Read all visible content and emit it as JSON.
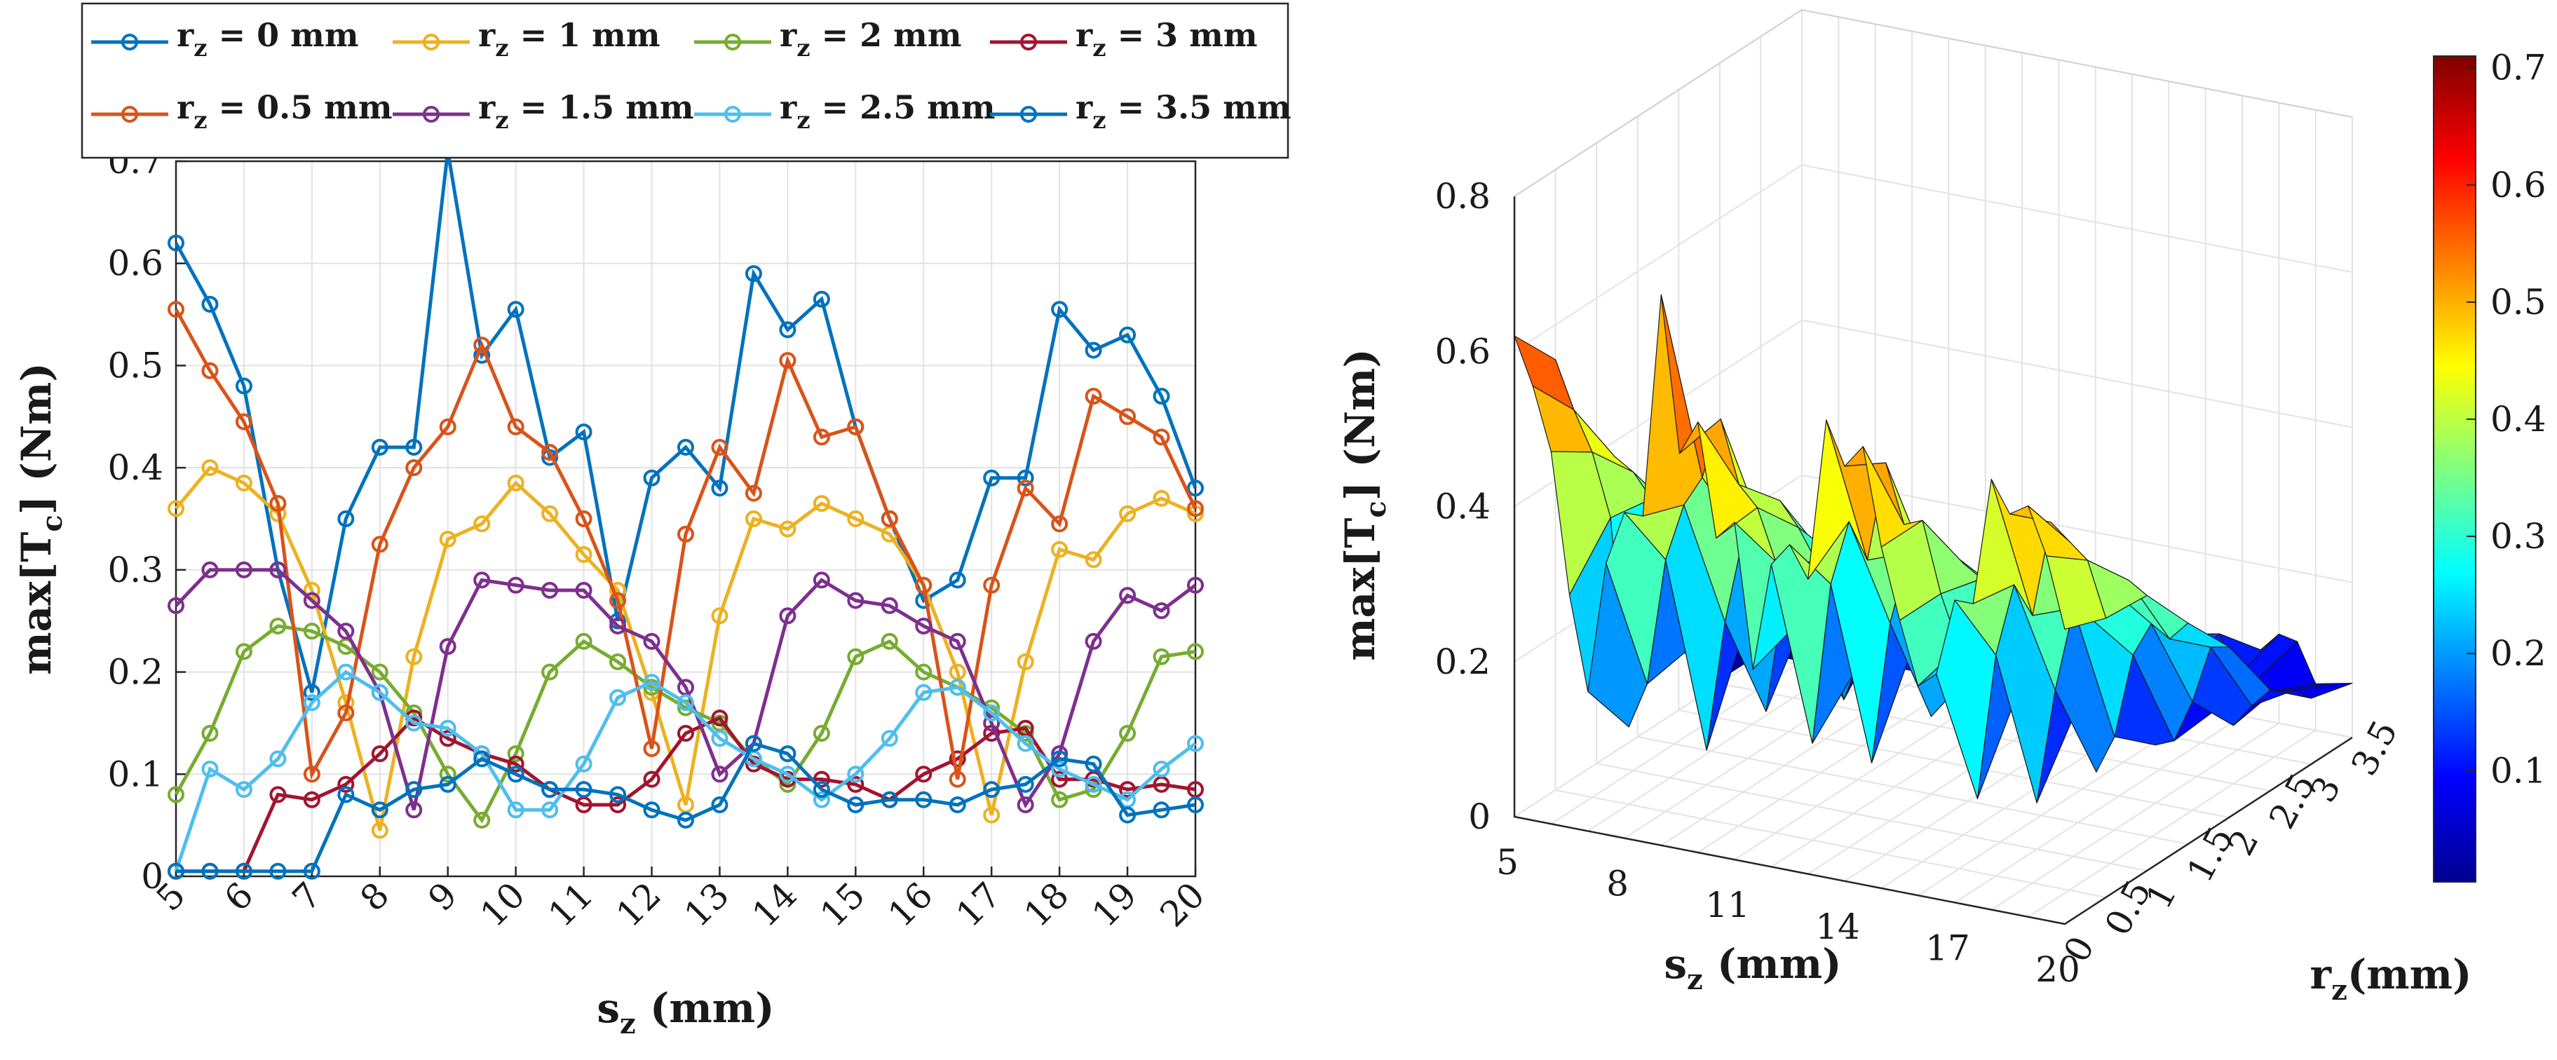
{
  "chart_data": [
    {
      "type": "line",
      "xlabel_main": "s",
      "xlabel_sub": "z",
      "xlabel_unit": " (mm)",
      "ylabel_main": "max[T",
      "ylabel_sub": "c",
      "ylabel_unit": "] (Nm)",
      "xlim": [
        5,
        20
      ],
      "ylim": [
        0,
        0.7
      ],
      "x_ticks": [
        "5",
        "6",
        "7",
        "8",
        "9",
        "10",
        "11",
        "12",
        "13",
        "14",
        "15",
        "16",
        "17",
        "18",
        "19",
        "20"
      ],
      "y_ticks": [
        "0",
        "0.1",
        "0.2",
        "0.3",
        "0.4",
        "0.5",
        "0.6",
        "0.7"
      ],
      "grid": true,
      "legend_position": "top",
      "x": [
        5,
        5.5,
        6,
        6.5,
        7,
        7.5,
        8,
        8.5,
        9,
        9.5,
        10,
        10.5,
        11,
        11.5,
        12,
        12.5,
        13,
        13.5,
        14,
        14.5,
        15,
        15.5,
        16,
        16.5,
        17,
        17.5,
        18,
        18.5,
        19,
        19.5,
        20
      ],
      "series": [
        {
          "name_pre": "r",
          "name_sub": "z",
          "name_post": " = 0 mm",
          "color": "#0072BD",
          "values": [
            0.62,
            0.56,
            0.48,
            0.3,
            0.18,
            0.35,
            0.42,
            0.42,
            0.71,
            0.51,
            0.555,
            0.41,
            0.435,
            0.25,
            0.39,
            0.42,
            0.38,
            0.59,
            0.535,
            0.565,
            0.44,
            0.35,
            0.27,
            0.29,
            0.39,
            0.39,
            0.555,
            0.515,
            0.53,
            0.47,
            0.38
          ]
        },
        {
          "name_pre": "r",
          "name_sub": "z",
          "name_post": " = 1 mm",
          "color": "#EDB120",
          "values": [
            0.36,
            0.4,
            0.385,
            0.355,
            0.28,
            0.17,
            0.045,
            0.215,
            0.33,
            0.345,
            0.385,
            0.355,
            0.315,
            0.28,
            0.18,
            0.07,
            0.255,
            0.35,
            0.34,
            0.365,
            0.35,
            0.335,
            0.285,
            0.2,
            0.06,
            0.21,
            0.32,
            0.31,
            0.355,
            0.37,
            0.355
          ]
        },
        {
          "name_pre": "r",
          "name_sub": "z",
          "name_post": " = 2 mm",
          "color": "#77AC30",
          "values": [
            0.08,
            0.14,
            0.22,
            0.245,
            0.24,
            0.225,
            0.2,
            0.16,
            0.1,
            0.055,
            0.12,
            0.2,
            0.23,
            0.21,
            0.185,
            0.165,
            0.15,
            0.115,
            0.09,
            0.14,
            0.215,
            0.23,
            0.2,
            0.185,
            0.165,
            0.14,
            0.075,
            0.085,
            0.14,
            0.215,
            0.22
          ]
        },
        {
          "name_pre": "r",
          "name_sub": "z",
          "name_post": " = 3 mm",
          "color": "#A2142F",
          "values": [
            0.005,
            0.005,
            0.005,
            0.08,
            0.075,
            0.09,
            0.12,
            0.155,
            0.135,
            0.12,
            0.11,
            0.085,
            0.07,
            0.07,
            0.095,
            0.14,
            0.155,
            0.11,
            0.095,
            0.095,
            0.09,
            0.075,
            0.1,
            0.115,
            0.14,
            0.145,
            0.095,
            0.095,
            0.085,
            0.09,
            0.085
          ]
        },
        {
          "name_pre": "r",
          "name_sub": "z",
          "name_post": " = 0.5 mm",
          "color": "#D95319",
          "values": [
            0.555,
            0.495,
            0.445,
            0.365,
            0.1,
            0.16,
            0.325,
            0.4,
            0.44,
            0.52,
            0.44,
            0.415,
            0.35,
            0.27,
            0.125,
            0.335,
            0.42,
            0.375,
            0.505,
            0.43,
            0.44,
            0.35,
            0.285,
            0.095,
            0.285,
            0.38,
            0.345,
            0.47,
            0.45,
            0.43,
            0.36
          ]
        },
        {
          "name_pre": "r",
          "name_sub": "z",
          "name_post": " = 1.5 mm",
          "color": "#7E2F8E",
          "values": [
            0.265,
            0.3,
            0.3,
            0.3,
            0.27,
            0.24,
            0.18,
            0.065,
            0.225,
            0.29,
            0.285,
            0.28,
            0.28,
            0.245,
            0.23,
            0.185,
            0.1,
            0.13,
            0.255,
            0.29,
            0.27,
            0.265,
            0.245,
            0.23,
            0.15,
            0.07,
            0.12,
            0.23,
            0.275,
            0.26,
            0.285
          ]
        },
        {
          "name_pre": "r",
          "name_sub": "z",
          "name_post": " = 2.5 mm",
          "color": "#4DBEEE",
          "values": [
            0.005,
            0.105,
            0.085,
            0.115,
            0.17,
            0.2,
            0.18,
            0.15,
            0.145,
            0.12,
            0.065,
            0.065,
            0.11,
            0.175,
            0.19,
            0.17,
            0.135,
            0.115,
            0.1,
            0.075,
            0.1,
            0.135,
            0.18,
            0.185,
            0.16,
            0.13,
            0.105,
            0.09,
            0.075,
            0.105,
            0.13
          ]
        },
        {
          "name_pre": "r",
          "name_sub": "z",
          "name_post": " = 3.5 mm",
          "color": "#0072BD",
          "values": [
            0.005,
            0.005,
            0.005,
            0.005,
            0.005,
            0.08,
            0.065,
            0.085,
            0.09,
            0.115,
            0.1,
            0.085,
            0.085,
            0.08,
            0.065,
            0.055,
            0.07,
            0.13,
            0.12,
            0.085,
            0.07,
            0.075,
            0.075,
            0.07,
            0.085,
            0.09,
            0.115,
            0.11,
            0.06,
            0.065,
            0.07
          ]
        }
      ]
    },
    {
      "type": "surface",
      "xlabel_main": "s",
      "xlabel_sub": "z",
      "xlabel_unit": " (mm)",
      "ylabel_main": "r",
      "ylabel_sub": "z",
      "ylabel_unit": "(mm)",
      "zlabel_main": "max[T",
      "zlabel_sub": "c",
      "zlabel_unit": "] (Nm)",
      "x_ticks": [
        "5",
        "8",
        "11",
        "14",
        "17",
        "20"
      ],
      "y_ticks": [
        "0",
        "0.5",
        "1",
        "1.5",
        "2",
        "2.5",
        "3",
        "3.5"
      ],
      "z_ticks": [
        "0",
        "0.2",
        "0.4",
        "0.6",
        "0.8"
      ],
      "xlim": [
        5,
        20
      ],
      "ylim": [
        0,
        3.5
      ],
      "zlim": [
        0,
        0.8
      ],
      "colorbar_ticks": [
        "0.1",
        "0.2",
        "0.3",
        "0.4",
        "0.5",
        "0.6",
        "0.7"
      ],
      "colorbar_range": [
        0.005,
        0.71
      ],
      "colormap": "jet"
    }
  ]
}
